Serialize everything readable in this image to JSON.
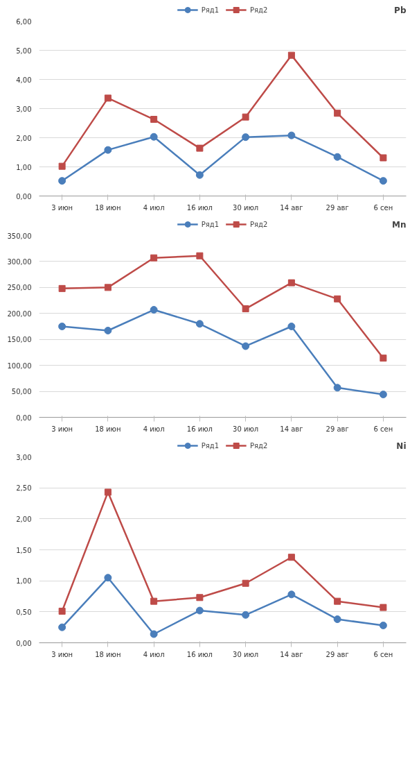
{
  "chart_data": [
    {
      "type": "line",
      "title": "Pb",
      "categories": [
        "3 июн",
        "18 июн",
        "4 июл",
        "16 июл",
        "30 июл",
        "14 авг",
        "29 авг",
        "6 сен"
      ],
      "series": [
        {
          "name": "Ряд1",
          "color": "#4a7ebb",
          "marker": "circle",
          "values": [
            0.52,
            1.58,
            2.03,
            0.72,
            2.02,
            2.08,
            1.34,
            0.52
          ]
        },
        {
          "name": "Ряд2",
          "color": "#be4b48",
          "marker": "square",
          "values": [
            1.02,
            3.36,
            2.63,
            1.64,
            2.71,
            4.83,
            2.84,
            1.31
          ]
        }
      ],
      "ylim": [
        0,
        6
      ],
      "yticks": [
        {
          "value": 0,
          "label": "0,00"
        },
        {
          "value": 1,
          "label": "1,00"
        },
        {
          "value": 2,
          "label": "2,00"
        },
        {
          "value": 3,
          "label": "3,00"
        },
        {
          "value": 4,
          "label": "4,00"
        },
        {
          "value": 5,
          "label": "5,00"
        },
        {
          "value": 6,
          "label": "6,00"
        }
      ],
      "grid": "y",
      "legend": "top"
    },
    {
      "type": "line",
      "title": "Mn",
      "categories": [
        "3 июн",
        "18 июн",
        "4 июл",
        "16 июл",
        "30 июл",
        "14 авг",
        "29 авг",
        "6 сен"
      ],
      "series": [
        {
          "name": "Ряд1",
          "color": "#4a7ebb",
          "marker": "circle",
          "values": [
            175,
            167,
            207,
            180,
            137,
            175,
            57,
            44
          ]
        },
        {
          "name": "Ряд2",
          "color": "#be4b48",
          "marker": "square",
          "values": [
            248,
            250,
            307,
            311,
            209,
            259,
            228,
            114
          ]
        }
      ],
      "ylim": [
        0,
        350
      ],
      "yticks": [
        {
          "value": 0,
          "label": "0,00"
        },
        {
          "value": 50,
          "label": "50,00"
        },
        {
          "value": 100,
          "label": "100,00"
        },
        {
          "value": 150,
          "label": "150,00"
        },
        {
          "value": 200,
          "label": "200,00"
        },
        {
          "value": 250,
          "label": "250,00"
        },
        {
          "value": 300,
          "label": "300,00"
        },
        {
          "value": 350,
          "label": "350,00"
        }
      ],
      "grid": "y",
      "legend": "top"
    },
    {
      "type": "line",
      "title": "Ni",
      "categories": [
        "3 июн",
        "18 июн",
        "4 июл",
        "16 июл",
        "30 июл",
        "14 авг",
        "29 авг",
        "6 сен"
      ],
      "series": [
        {
          "name": "Ряд1",
          "color": "#4a7ebb",
          "marker": "circle",
          "values": [
            0.25,
            1.05,
            0.14,
            0.52,
            0.45,
            0.78,
            0.38,
            0.28
          ]
        },
        {
          "name": "Ряд2",
          "color": "#be4b48",
          "marker": "square",
          "values": [
            0.51,
            2.43,
            0.67,
            0.73,
            0.96,
            1.38,
            0.67,
            0.57
          ]
        }
      ],
      "ylim": [
        0,
        3
      ],
      "yticks": [
        {
          "value": 0,
          "label": "0,00"
        },
        {
          "value": 0.5,
          "label": "0,50"
        },
        {
          "value": 1,
          "label": "1,00"
        },
        {
          "value": 1.5,
          "label": "1,50"
        },
        {
          "value": 2,
          "label": "2,00"
        },
        {
          "value": 2.5,
          "label": "2,50"
        },
        {
          "value": 3,
          "label": "3,00"
        }
      ],
      "grid": "y",
      "legend": "top"
    }
  ]
}
